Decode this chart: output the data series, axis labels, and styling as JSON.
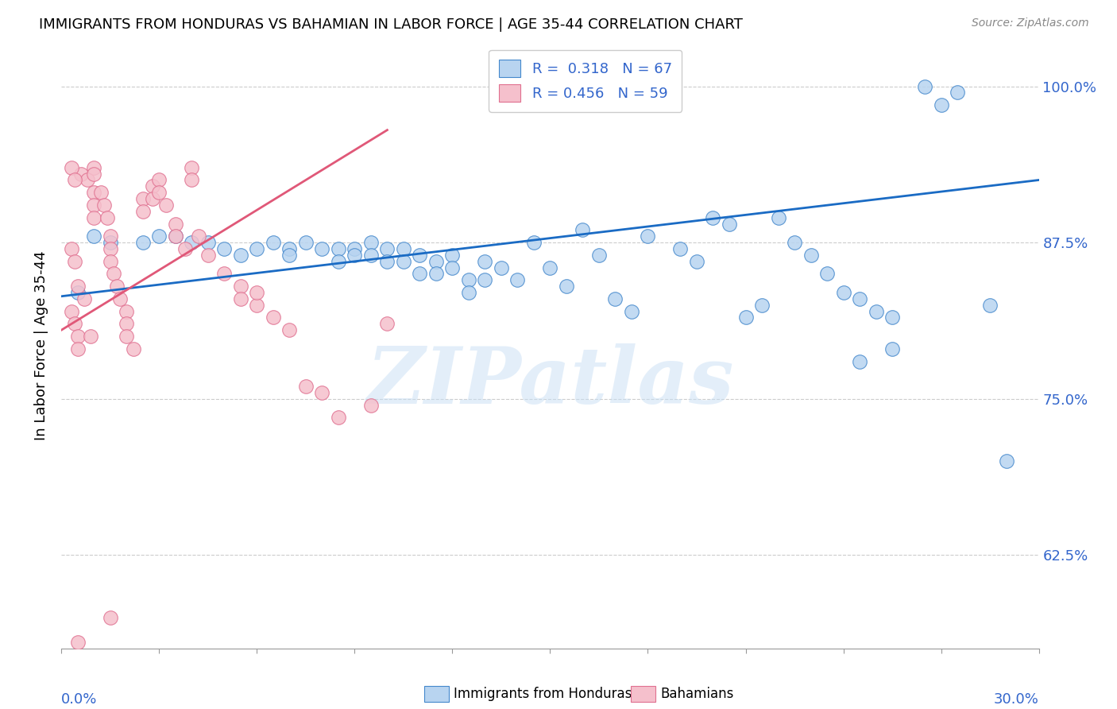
{
  "title": "IMMIGRANTS FROM HONDURAS VS BAHAMIAN IN LABOR FORCE | AGE 35-44 CORRELATION CHART",
  "source": "Source: ZipAtlas.com",
  "ylabel_label": "In Labor Force | Age 35-44",
  "legend1_R": "0.318",
  "legend1_N": "67",
  "legend2_R": "0.456",
  "legend2_N": "59",
  "blue_color": "#b8d4f0",
  "blue_edge_color": "#4488cc",
  "blue_line_color": "#1a6bc4",
  "pink_color": "#f5c0cc",
  "pink_edge_color": "#e07090",
  "pink_line_color": "#e05878",
  "axis_label_color": "#3366cc",
  "blue_scatter": [
    [
      0.5,
      83.5
    ],
    [
      1.0,
      88.0
    ],
    [
      1.5,
      87.5
    ],
    [
      2.5,
      87.5
    ],
    [
      3.0,
      88.0
    ],
    [
      3.5,
      88.0
    ],
    [
      4.0,
      87.5
    ],
    [
      4.5,
      87.5
    ],
    [
      5.0,
      87.0
    ],
    [
      5.5,
      86.5
    ],
    [
      6.0,
      87.0
    ],
    [
      6.5,
      87.5
    ],
    [
      7.0,
      87.0
    ],
    [
      7.0,
      86.5
    ],
    [
      7.5,
      87.5
    ],
    [
      8.0,
      87.0
    ],
    [
      8.5,
      87.0
    ],
    [
      8.5,
      86.0
    ],
    [
      9.0,
      87.0
    ],
    [
      9.0,
      86.5
    ],
    [
      9.5,
      87.5
    ],
    [
      9.5,
      86.5
    ],
    [
      10.0,
      87.0
    ],
    [
      10.0,
      86.0
    ],
    [
      10.5,
      87.0
    ],
    [
      10.5,
      86.0
    ],
    [
      11.0,
      86.5
    ],
    [
      11.0,
      85.0
    ],
    [
      11.5,
      86.0
    ],
    [
      11.5,
      85.0
    ],
    [
      12.0,
      86.5
    ],
    [
      12.0,
      85.5
    ],
    [
      12.5,
      84.5
    ],
    [
      12.5,
      83.5
    ],
    [
      13.0,
      86.0
    ],
    [
      13.0,
      84.5
    ],
    [
      13.5,
      85.5
    ],
    [
      14.0,
      84.5
    ],
    [
      14.5,
      87.5
    ],
    [
      15.0,
      85.5
    ],
    [
      15.5,
      84.0
    ],
    [
      16.0,
      88.5
    ],
    [
      16.5,
      86.5
    ],
    [
      17.0,
      83.0
    ],
    [
      17.5,
      82.0
    ],
    [
      18.0,
      88.0
    ],
    [
      19.0,
      87.0
    ],
    [
      19.5,
      86.0
    ],
    [
      20.0,
      89.5
    ],
    [
      20.5,
      89.0
    ],
    [
      21.0,
      81.5
    ],
    [
      21.5,
      82.5
    ],
    [
      22.0,
      89.5
    ],
    [
      22.5,
      87.5
    ],
    [
      23.0,
      86.5
    ],
    [
      23.5,
      85.0
    ],
    [
      24.0,
      83.5
    ],
    [
      24.5,
      83.0
    ],
    [
      24.5,
      78.0
    ],
    [
      25.0,
      82.0
    ],
    [
      25.5,
      81.5
    ],
    [
      25.5,
      79.0
    ],
    [
      26.5,
      100.0
    ],
    [
      27.0,
      98.5
    ],
    [
      27.5,
      99.5
    ],
    [
      28.5,
      82.5
    ],
    [
      29.0,
      70.0
    ]
  ],
  "pink_scatter": [
    [
      0.3,
      82.0
    ],
    [
      0.4,
      81.0
    ],
    [
      0.5,
      80.0
    ],
    [
      0.5,
      79.0
    ],
    [
      0.6,
      93.0
    ],
    [
      0.7,
      83.0
    ],
    [
      0.8,
      92.5
    ],
    [
      0.9,
      80.0
    ],
    [
      1.0,
      91.5
    ],
    [
      1.0,
      90.5
    ],
    [
      1.0,
      89.5
    ],
    [
      1.0,
      93.5
    ],
    [
      1.0,
      93.0
    ],
    [
      1.2,
      91.5
    ],
    [
      1.3,
      90.5
    ],
    [
      1.4,
      89.5
    ],
    [
      1.5,
      88.0
    ],
    [
      1.5,
      87.0
    ],
    [
      1.5,
      86.0
    ],
    [
      1.6,
      85.0
    ],
    [
      1.7,
      84.0
    ],
    [
      1.8,
      83.0
    ],
    [
      2.0,
      82.0
    ],
    [
      2.0,
      81.0
    ],
    [
      2.0,
      80.0
    ],
    [
      2.2,
      79.0
    ],
    [
      2.5,
      91.0
    ],
    [
      2.5,
      90.0
    ],
    [
      2.8,
      92.0
    ],
    [
      2.8,
      91.0
    ],
    [
      3.0,
      92.5
    ],
    [
      3.0,
      91.5
    ],
    [
      3.2,
      90.5
    ],
    [
      3.5,
      89.0
    ],
    [
      3.5,
      88.0
    ],
    [
      3.8,
      87.0
    ],
    [
      4.0,
      93.5
    ],
    [
      4.0,
      92.5
    ],
    [
      4.2,
      88.0
    ],
    [
      4.5,
      86.5
    ],
    [
      5.0,
      85.0
    ],
    [
      5.5,
      84.0
    ],
    [
      5.5,
      83.0
    ],
    [
      6.0,
      82.5
    ],
    [
      6.0,
      83.5
    ],
    [
      6.5,
      81.5
    ],
    [
      7.0,
      80.5
    ],
    [
      7.5,
      76.0
    ],
    [
      8.0,
      75.5
    ],
    [
      8.5,
      73.5
    ],
    [
      9.5,
      74.5
    ],
    [
      10.0,
      81.0
    ],
    [
      1.5,
      57.5
    ],
    [
      0.5,
      55.5
    ],
    [
      0.3,
      93.5
    ],
    [
      0.4,
      92.5
    ],
    [
      0.3,
      87.0
    ],
    [
      0.4,
      86.0
    ],
    [
      0.5,
      84.0
    ]
  ],
  "blue_trendline_x": [
    0.0,
    30.0
  ],
  "blue_trendline_y": [
    83.2,
    92.5
  ],
  "pink_trendline_x": [
    0.0,
    10.0
  ],
  "pink_trendline_y": [
    80.5,
    96.5
  ],
  "xlim": [
    0.0,
    30.0
  ],
  "ylim": [
    55.0,
    103.5
  ],
  "y_ticks": [
    62.5,
    75.0,
    87.5,
    100.0
  ],
  "x_ticks": [
    0.0,
    3.0,
    6.0,
    9.0,
    12.0,
    15.0,
    18.0,
    21.0,
    24.0,
    27.0,
    30.0
  ]
}
